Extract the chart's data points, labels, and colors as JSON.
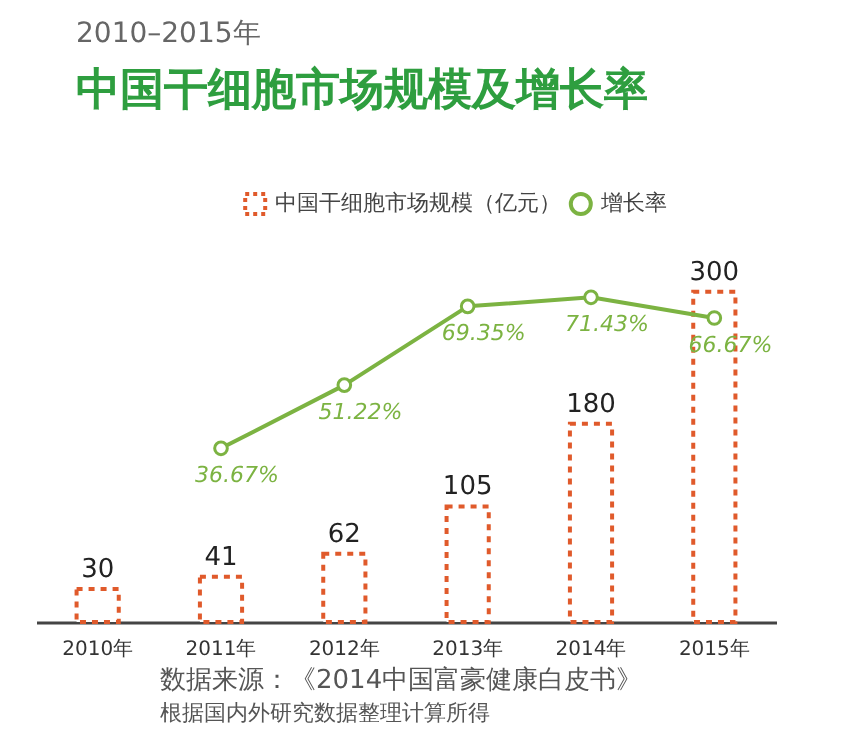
{
  "chart_data": {
    "type": "bar",
    "title": "中国干细胞市场规模及增长率",
    "subtitle": "2010–2015年",
    "categories": [
      "2010年",
      "2011年",
      "2012年",
      "2013年",
      "2014年",
      "2015年"
    ],
    "series": [
      {
        "name": "中国干细胞市场规模（亿元）",
        "color": "#e05a2b",
        "values": [
          30,
          41,
          62,
          105,
          180,
          300
        ],
        "value_labels": [
          "30",
          "41",
          "62",
          "105",
          "180",
          "300"
        ]
      },
      {
        "name": "增长率",
        "type": "line",
        "axis": "y2",
        "color": "#7cb342",
        "values": [
          null,
          36.67,
          51.22,
          69.35,
          71.43,
          66.67
        ],
        "value_labels": [
          null,
          "36.67%",
          "51.22%",
          "69.35%",
          "71.43%",
          "66.67%"
        ]
      }
    ],
    "marker": "circle",
    "legend": "top right",
    "tick_labels": "x",
    "annotations": [
      "数据来源：《2014中国富豪健康白皮书》",
      "根据国内外研究数据整理计算所得"
    ]
  }
}
